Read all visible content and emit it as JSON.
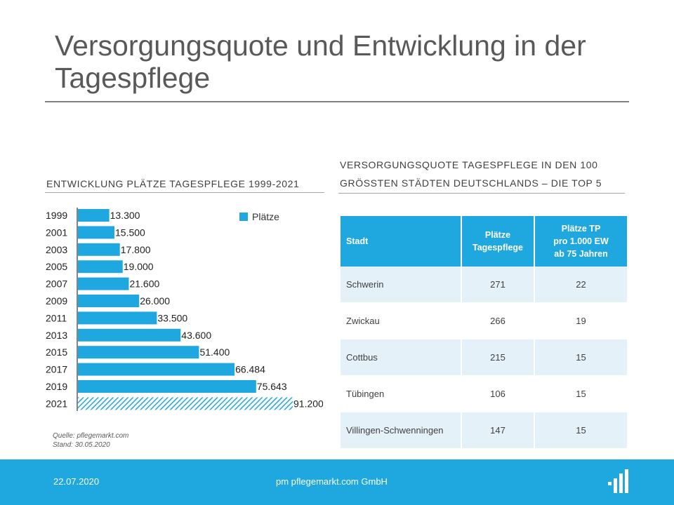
{
  "slide": {
    "title": "Versorgungsquote und Entwicklung in der Tagespflege"
  },
  "chart_section": {
    "heading": "ENTWICKLUNG PLÄTZE TAGESPFLEGE 1999-2021",
    "source_line1": "Quelle: pflegemarkt.com",
    "source_line2": "Stand: 30.05.2020"
  },
  "chart_data": {
    "type": "bar",
    "orientation": "horizontal",
    "title": "ENTWICKLUNG PLÄTZE TAGESPFLEGE 1999-2021",
    "categories": [
      "1999",
      "2001",
      "2003",
      "2005",
      "2007",
      "2009",
      "2011",
      "2013",
      "2015",
      "2017",
      "2019",
      "2021"
    ],
    "series": [
      {
        "name": "Plätze",
        "values": [
          13300,
          15500,
          17800,
          19000,
          21600,
          26000,
          33500,
          43600,
          51400,
          66484,
          75643,
          91200
        ],
        "labels": [
          "13.300",
          "15.500",
          "17.800",
          "19.000",
          "21.600",
          "26.000",
          "33.500",
          "43.600",
          "51.400",
          "66.484",
          "75.643",
          "91.200"
        ],
        "forecast_categories": [
          "2021"
        ]
      }
    ],
    "xlim": [
      0,
      91200
    ],
    "legend": "top-right",
    "color": "#1fa8e0"
  },
  "table_section": {
    "heading_line1": "VERSORGUNGSQUOTE TAGESPFLEGE IN DEN 100",
    "heading_line2": "GRÖSSTEN STÄDTEN DEUTSCHLANDS – DIE TOP 5",
    "columns": {
      "stadt": "Stadt",
      "plaetze_line1": "Plätze",
      "plaetze_line2": "Tagespflege",
      "quote_line1": "Plätze TP",
      "quote_line2": "pro 1.000 EW",
      "quote_line3": "ab 75 Jahren"
    },
    "rows": [
      {
        "stadt": "Schwerin",
        "plaetze": "271",
        "quote": "22"
      },
      {
        "stadt": "Zwickau",
        "plaetze": "266",
        "quote": "19"
      },
      {
        "stadt": "Cottbus",
        "plaetze": "215",
        "quote": "15"
      },
      {
        "stadt": "Tübingen",
        "plaetze": "106",
        "quote": "15"
      },
      {
        "stadt": "Villingen-Schwenningen",
        "plaetze": "147",
        "quote": "15"
      }
    ]
  },
  "footer": {
    "date": "22.07.2020",
    "company": "pm pflegemarkt.com GmbH",
    "logo_icon": "pflegemarkt-logo-icon"
  },
  "colors": {
    "accent": "#1fa8e0",
    "title": "#595959",
    "row_shade": "#e5f1f9"
  }
}
